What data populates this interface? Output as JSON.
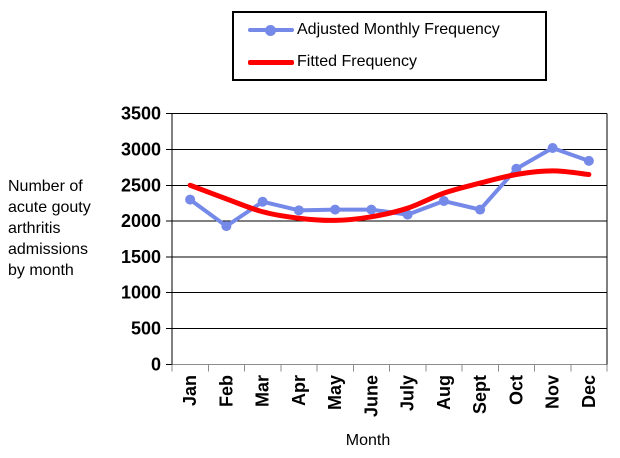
{
  "chart_data": {
    "type": "line",
    "categories": [
      "Jan",
      "Feb",
      "Mar",
      "Apr",
      "May",
      "June",
      "July",
      "Aug",
      "Sept",
      "Oct",
      "Nov",
      "Dec"
    ],
    "series": [
      {
        "name": "Adjusted Monthly Frequency",
        "color": "#7589E8",
        "marker": "circle",
        "values": [
          2300,
          1930,
          2270,
          2150,
          2160,
          2160,
          2090,
          2280,
          2160,
          2730,
          3020,
          2840
        ]
      },
      {
        "name": "Fitted Frequency",
        "color": "#FF0000",
        "marker": "none",
        "values": [
          2500,
          2310,
          2130,
          2040,
          2010,
          2060,
          2180,
          2390,
          2530,
          2650,
          2700,
          2650
        ]
      }
    ],
    "xlabel": "Month",
    "ylabel": "Number of acute gouty arthritis admissions by month",
    "ylabel_lines": [
      "Number of",
      "acute gouty",
      "arthritis",
      "admissions",
      "by month"
    ],
    "ylim": [
      0,
      3500
    ],
    "ytick_step": 500,
    "ytick_labels": [
      "0",
      "500",
      "1000",
      "1500",
      "2000",
      "2500",
      "3000",
      "3500"
    ],
    "grid": "horizontal-black",
    "axis_color": "#000000",
    "category_axis_color": "#8C8C8C",
    "legend_position": "top-center",
    "legend_border_color": "#000000"
  }
}
